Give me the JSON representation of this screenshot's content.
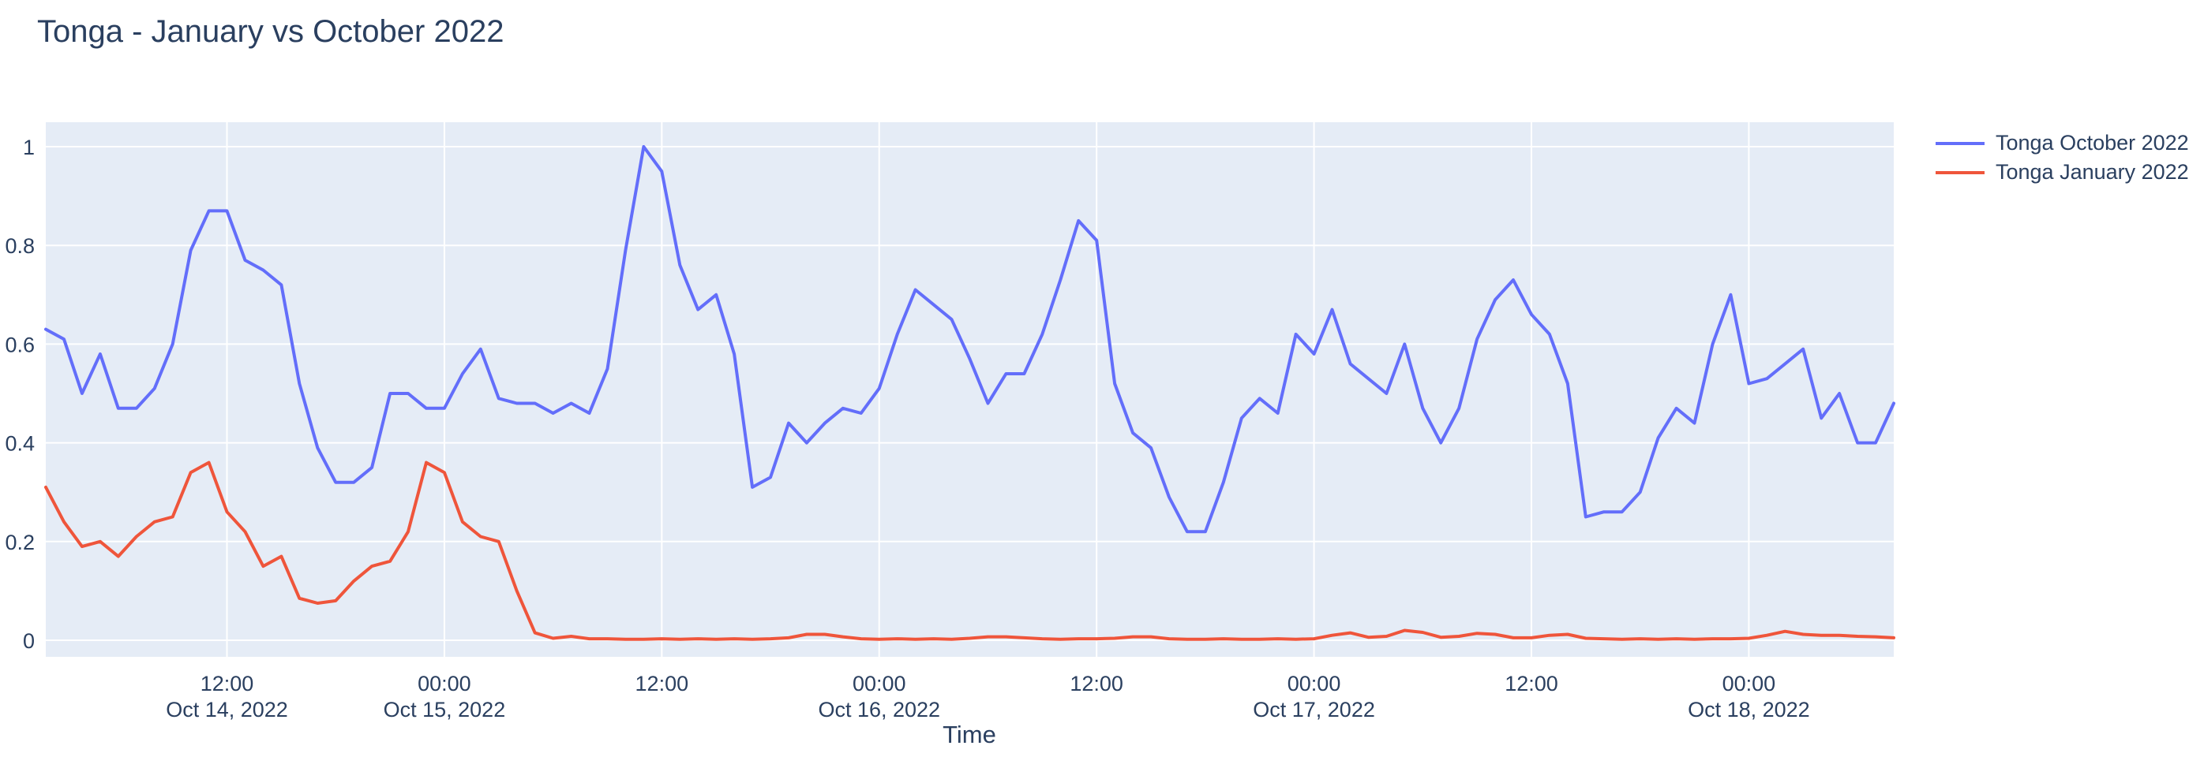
{
  "page_title": "Tonga - January vs October 2022",
  "chart_data": {
    "type": "line",
    "title": "Tonga - January vs October 2022",
    "xlabel": "Time",
    "ylabel": "",
    "x_start": "Oct 14, 2022 02:00",
    "x_step_hours": 1,
    "n_points": 103,
    "ylim": [
      -0.037,
      1.046
    ],
    "grid": true,
    "legend_position": "top-right",
    "plot_bg_color": "#e5ecf6",
    "grid_color": "#ffffff",
    "text_color": "#2a3f5f",
    "y_ticks": [
      0,
      0.2,
      0.4,
      0.6,
      0.8,
      1
    ],
    "x_ticks": [
      {
        "hour": 10,
        "time": "12:00",
        "date": "Oct 14, 2022"
      },
      {
        "hour": 22,
        "time": "00:00",
        "date": "Oct 15, 2022"
      },
      {
        "hour": 34,
        "time": "12:00",
        "date": ""
      },
      {
        "hour": 46,
        "time": "00:00",
        "date": "Oct 16, 2022"
      },
      {
        "hour": 58,
        "time": "12:00",
        "date": ""
      },
      {
        "hour": 70,
        "time": "00:00",
        "date": "Oct 17, 2022"
      },
      {
        "hour": 82,
        "time": "12:00",
        "date": ""
      },
      {
        "hour": 94,
        "time": "00:00",
        "date": "Oct 18, 2022"
      }
    ],
    "series": [
      {
        "name": "Tonga October 2022",
        "color": "#636efa",
        "values": [
          0.63,
          0.61,
          0.5,
          0.58,
          0.47,
          0.47,
          0.51,
          0.6,
          0.79,
          0.87,
          0.87,
          0.77,
          0.75,
          0.72,
          0.52,
          0.39,
          0.32,
          0.32,
          0.35,
          0.5,
          0.5,
          0.47,
          0.47,
          0.54,
          0.59,
          0.49,
          0.48,
          0.48,
          0.46,
          0.48,
          0.46,
          0.55,
          0.79,
          1.0,
          0.95,
          0.76,
          0.67,
          0.7,
          0.58,
          0.31,
          0.33,
          0.44,
          0.4,
          0.44,
          0.47,
          0.46,
          0.51,
          0.62,
          0.71,
          0.68,
          0.65,
          0.57,
          0.48,
          0.54,
          0.54,
          0.62,
          0.73,
          0.85,
          0.81,
          0.52,
          0.42,
          0.39,
          0.29,
          0.22,
          0.22,
          0.32,
          0.45,
          0.49,
          0.46,
          0.62,
          0.58,
          0.67,
          0.56,
          0.53,
          0.5,
          0.6,
          0.47,
          0.4,
          0.47,
          0.61,
          0.69,
          0.73,
          0.66,
          0.62,
          0.52,
          0.25,
          0.26,
          0.26,
          0.3,
          0.41,
          0.47,
          0.44,
          0.6,
          0.7,
          0.52,
          0.53,
          0.56,
          0.59,
          0.45,
          0.5,
          0.4,
          0.4,
          0.48
        ]
      },
      {
        "name": "Tonga January 2022",
        "color": "#ef553b",
        "values": [
          0.31,
          0.24,
          0.19,
          0.2,
          0.17,
          0.21,
          0.24,
          0.25,
          0.34,
          0.36,
          0.26,
          0.22,
          0.15,
          0.17,
          0.085,
          0.075,
          0.08,
          0.12,
          0.15,
          0.16,
          0.22,
          0.36,
          0.34,
          0.24,
          0.21,
          0.2,
          0.1,
          0.015,
          0.004,
          0.008,
          0.003,
          0.003,
          0.002,
          0.002,
          0.003,
          0.002,
          0.003,
          0.002,
          0.003,
          0.002,
          0.003,
          0.005,
          0.012,
          0.012,
          0.007,
          0.003,
          0.002,
          0.003,
          0.002,
          0.003,
          0.002,
          0.004,
          0.007,
          0.007,
          0.005,
          0.003,
          0.002,
          0.003,
          0.003,
          0.004,
          0.007,
          0.007,
          0.003,
          0.002,
          0.002,
          0.003,
          0.002,
          0.002,
          0.003,
          0.002,
          0.003,
          0.01,
          0.015,
          0.006,
          0.008,
          0.02,
          0.016,
          0.006,
          0.008,
          0.014,
          0.012,
          0.005,
          0.005,
          0.01,
          0.012,
          0.004,
          0.003,
          0.002,
          0.003,
          0.002,
          0.003,
          0.002,
          0.003,
          0.003,
          0.004,
          0.01,
          0.018,
          0.012,
          0.01,
          0.01,
          0.008,
          0.007,
          0.005
        ]
      }
    ]
  }
}
